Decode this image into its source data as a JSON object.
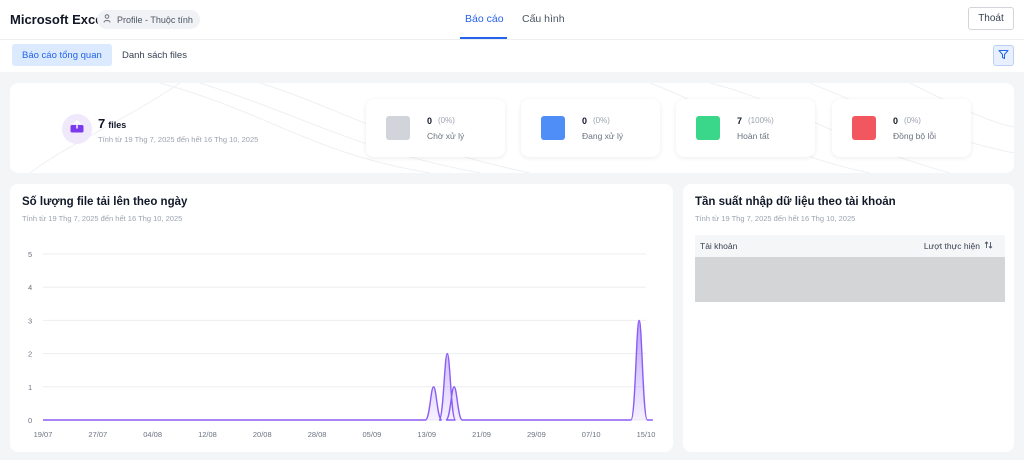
{
  "header": {
    "app_title": "Microsoft Excel",
    "profile_chip": "Profile - Thuộc tính",
    "tabs": [
      "Báo cáo",
      "Cấu hình"
    ],
    "logout": "Thoát"
  },
  "subnav": {
    "tabs": [
      "Báo cáo tổng quan",
      "Danh sách files"
    ]
  },
  "summary": {
    "count": "7",
    "unit": "files",
    "range": "Tính từ 19 Thg 7, 2025 đến hết 16 Thg 10, 2025",
    "statuses": [
      {
        "count": "0",
        "percent": "(0%)",
        "label": "Chờ xử lý",
        "color": "#d1d5db"
      },
      {
        "count": "0",
        "percent": "(0%)",
        "label": "Đang xử lý",
        "color": "#4f8ef7"
      },
      {
        "count": "7",
        "percent": "(100%)",
        "label": "Hoàn tất",
        "color": "#3ad78a"
      },
      {
        "count": "0",
        "percent": "(0%)",
        "label": "Đồng bộ lỗi",
        "color": "#f2575f"
      }
    ]
  },
  "chart_panel": {
    "title": "Số lượng file tải lên theo ngày",
    "subtitle": "Tính từ 19 Thg 7, 2025 đến hết 16 Thg 10, 2025"
  },
  "table_panel": {
    "title": "Tần suất nhập dữ liệu theo tài khoản",
    "subtitle": "Tính từ 19 Thg 7, 2025 đến hết 16 Thg 10, 2025",
    "columns": [
      "Tài khoản",
      "Lượt thực hiện"
    ]
  },
  "chart_data": {
    "type": "area",
    "title": "Số lượng file tải lên theo ngày",
    "x_ticks": [
      "19/07",
      "27/07",
      "04/08",
      "12/08",
      "20/08",
      "28/08",
      "05/09",
      "13/09",
      "21/09",
      "29/09",
      "07/10",
      "15/10"
    ],
    "y_ticks": [
      0,
      1,
      2,
      3,
      4,
      5
    ],
    "ylim": [
      0,
      5
    ],
    "x_range_days": [
      0,
      88
    ],
    "series": [
      {
        "color": "#8b5cf6",
        "points": [
          {
            "date": "19/07",
            "value": 0
          },
          {
            "date": "14/09",
            "value": 1
          },
          {
            "date": "16/09",
            "value": 2
          },
          {
            "date": "17/09",
            "value": 1
          },
          {
            "date": "14/10",
            "value": 3
          },
          {
            "date": "16/10",
            "value": 0
          }
        ]
      }
    ],
    "grid": true
  },
  "colors": {
    "accent": "#2563eb",
    "chart_line": "#8b5cf6"
  },
  "icons": [
    "user-icon",
    "filter-icon",
    "upload-icon",
    "sort-icon"
  ]
}
